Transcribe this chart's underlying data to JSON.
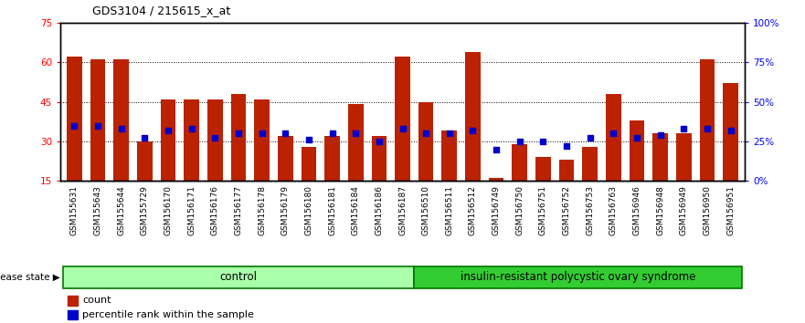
{
  "title": "GDS3104 / 215615_x_at",
  "samples": [
    "GSM155631",
    "GSM155643",
    "GSM155644",
    "GSM155729",
    "GSM156170",
    "GSM156171",
    "GSM156176",
    "GSM156177",
    "GSM156178",
    "GSM156179",
    "GSM156180",
    "GSM156181",
    "GSM156184",
    "GSM156186",
    "GSM156187",
    "GSM156510",
    "GSM156511",
    "GSM156512",
    "GSM156749",
    "GSM156750",
    "GSM156751",
    "GSM156752",
    "GSM156753",
    "GSM156763",
    "GSM156946",
    "GSM156948",
    "GSM156949",
    "GSM156950",
    "GSM156951"
  ],
  "counts": [
    62,
    61,
    61,
    30,
    46,
    46,
    46,
    48,
    46,
    32,
    28,
    32,
    44,
    32,
    62,
    45,
    34,
    64,
    16,
    29,
    24,
    23,
    28,
    48,
    38,
    33,
    33,
    61,
    52
  ],
  "percentile_ranks": [
    35,
    35,
    33,
    27,
    32,
    33,
    27,
    30,
    30,
    30,
    26,
    30,
    30,
    25,
    33,
    30,
    30,
    32,
    20,
    25,
    25,
    22,
    27,
    30,
    27,
    29,
    33,
    33,
    32
  ],
  "n_control": 15,
  "bar_color": "#bb2200",
  "marker_color": "#0000cc",
  "left_ylim": [
    15,
    75
  ],
  "right_ylim": [
    0,
    100
  ],
  "left_yticks": [
    15,
    30,
    45,
    60,
    75
  ],
  "right_yticks": [
    0,
    25,
    50,
    75,
    100
  ],
  "right_yticklabels": [
    "0%",
    "25%",
    "50%",
    "75%",
    "100%"
  ],
  "grid_lines": [
    30,
    45,
    60
  ],
  "control_label": "control",
  "disease_label": "insulin-resistant polycystic ovary syndrome",
  "legend_count": "count",
  "legend_percentile": "percentile rank within the sample",
  "disease_state_label": "disease state"
}
